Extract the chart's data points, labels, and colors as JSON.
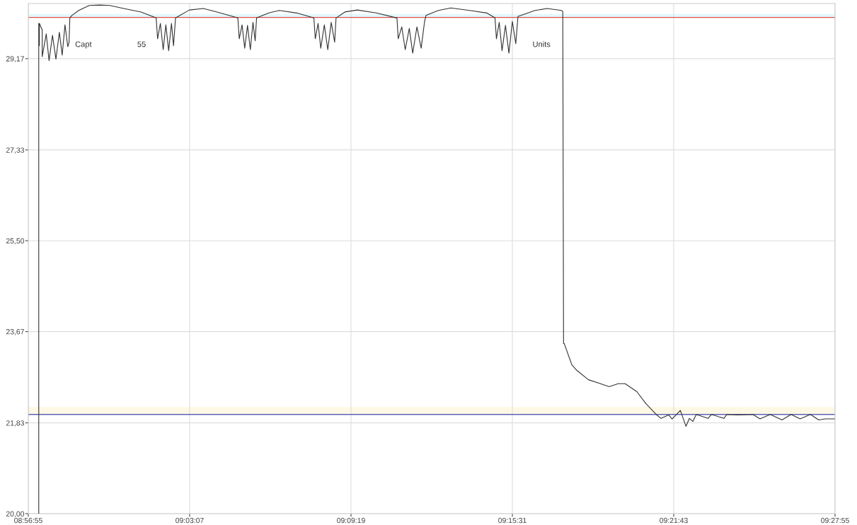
{
  "chart_data": {
    "type": "line",
    "x": [
      8.9553,
      8.9553,
      8.9557,
      8.9557,
      8.9575,
      8.9575,
      8.9601,
      8.9619,
      8.9641,
      8.9663,
      8.9685,
      8.9703,
      8.9721,
      8.9739,
      8.9747,
      8.9752,
      8.9765,
      8.9809,
      8.9876,
      8.9942,
      9.0009,
      9.0097,
      9.0208,
      9.0305,
      9.0314,
      9.0332,
      9.035,
      9.0367,
      9.0385,
      9.0403,
      9.0416,
      9.0429,
      9.0518,
      9.0607,
      9.0695,
      9.0828,
      9.0837,
      9.0855,
      9.0872,
      9.089,
      9.0908,
      9.0925,
      9.0939,
      9.0948,
      9.1027,
      9.1094,
      9.1204,
      9.1315,
      9.1324,
      9.1342,
      9.1359,
      9.1382,
      9.1404,
      9.1426,
      9.1448,
      9.1457,
      9.1514,
      9.1594,
      9.1714,
      9.1847,
      9.1855,
      9.1878,
      9.19,
      9.1926,
      9.1948,
      9.1975,
      9.2002,
      9.2024,
      9.2033,
      9.2112,
      9.2192,
      9.2312,
      9.2422,
      9.2475,
      9.2484,
      9.2502,
      9.252,
      9.2542,
      9.2564,
      9.2586,
      9.2608,
      9.2622,
      9.2732,
      9.2808,
      9.2901,
      9.2909,
      9.2914,
      9.2918,
      9.2967,
      9.2998,
      9.3073,
      9.314,
      9.3206,
      9.3264,
      9.3308,
      9.3383,
      9.3441,
      9.3507,
      9.3538,
      9.3587,
      9.3609,
      9.3662,
      9.3698,
      9.372,
      9.3742,
      9.3764,
      9.3839,
      9.3862,
      9.3941,
      9.3959,
      9.403,
      9.4127,
      9.4172,
      9.4238,
      9.4313,
      9.4371,
      9.4429,
      9.4495,
      9.4548,
      9.4592,
      9.465
    ],
    "series": [
      {
        "color": "#333333",
        "values": [
          20.0,
          29.88,
          29.43,
          29.88,
          29.75,
          29.21,
          29.67,
          29.13,
          29.64,
          29.16,
          29.7,
          29.24,
          29.85,
          29.41,
          29.5,
          29.99,
          30.04,
          30.14,
          30.24,
          30.25,
          30.24,
          30.18,
          30.11,
          29.99,
          29.57,
          29.88,
          29.35,
          29.85,
          29.33,
          29.88,
          29.43,
          29.99,
          30.15,
          30.18,
          30.11,
          29.99,
          29.57,
          29.85,
          29.38,
          29.84,
          29.35,
          29.9,
          29.53,
          29.99,
          30.09,
          30.14,
          30.09,
          29.99,
          29.57,
          29.88,
          29.38,
          29.85,
          29.35,
          29.9,
          29.5,
          29.99,
          30.11,
          30.15,
          30.09,
          29.99,
          29.57,
          29.81,
          29.35,
          29.78,
          29.28,
          29.81,
          29.38,
          29.92,
          30.04,
          30.14,
          30.19,
          30.14,
          30.09,
          29.99,
          29.57,
          29.9,
          29.33,
          29.84,
          29.28,
          29.92,
          29.47,
          30.02,
          30.14,
          30.18,
          30.14,
          30.12,
          23.43,
          23.43,
          23.0,
          22.89,
          22.7,
          22.63,
          22.56,
          22.62,
          22.62,
          22.46,
          22.22,
          22.0,
          21.92,
          21.99,
          21.91,
          22.08,
          21.76,
          21.92,
          21.86,
          22.0,
          21.92,
          22.0,
          21.92,
          22.0,
          21.99,
          22.0,
          21.91,
          22.0,
          21.89,
          22.0,
          21.91,
          22.0,
          21.89,
          21.91,
          21.91
        ]
      }
    ],
    "xlim": [
      8.948611,
      9.465278
    ],
    "ylim": [
      20.0,
      30.28
    ],
    "xticks": [
      {
        "value": 8.948611,
        "label": "08:56:55"
      },
      {
        "value": 9.051944,
        "label": "09:03:07"
      },
      {
        "value": 9.155278,
        "label": "09:09:19"
      },
      {
        "value": 9.258611,
        "label": "09:15:31"
      },
      {
        "value": 9.361944,
        "label": "09:21:43"
      },
      {
        "value": 9.465278,
        "label": "09:27:55"
      }
    ],
    "yticks": [
      {
        "value": 20.0,
        "label": "20,00"
      },
      {
        "value": 21.83,
        "label": "21,83"
      },
      {
        "value": 23.67,
        "label": "23,67"
      },
      {
        "value": 25.5,
        "label": "25,50"
      },
      {
        "value": 27.33,
        "label": "27,33"
      },
      {
        "value": 29.17,
        "label": "29,17"
      }
    ],
    "ref_lines": [
      {
        "axis": "y",
        "value": 30.0,
        "color": "#e05050"
      },
      {
        "axis": "y",
        "value": 22.0,
        "color": "#6060b8"
      }
    ],
    "bands": [
      {
        "axis": "y",
        "from": 22.0,
        "to": 22.15,
        "color": "#fdf8e4"
      },
      {
        "axis": "y",
        "from": 30.0,
        "to": 30.07,
        "color": "#e4f8fa"
      }
    ],
    "annotations": [
      "Capt",
      "55",
      "Units"
    ],
    "grid": true,
    "legend": false
  }
}
